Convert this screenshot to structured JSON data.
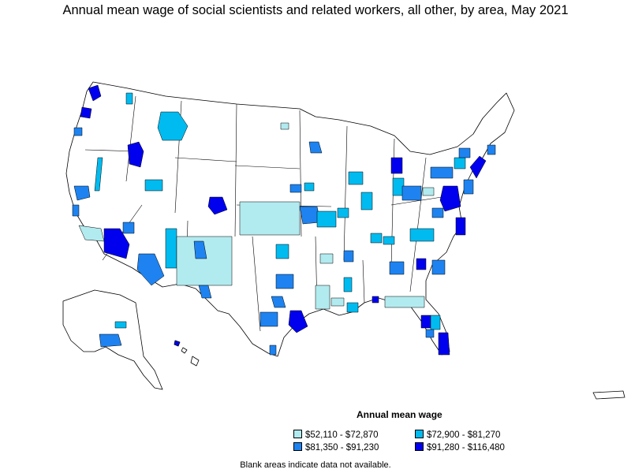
{
  "title": "Annual mean wage of social scientists and related workers, all other, by area, May 2021",
  "legend": {
    "title": "Annual mean wage",
    "items": [
      {
        "label": "$52,110 - $72,870",
        "color": "#b2ebef"
      },
      {
        "label": "$72,900 - $81,270",
        "color": "#00bbef"
      },
      {
        "label": "$81,350 - $91,230",
        "color": "#1e83f0"
      },
      {
        "label": "$91,280 - $116,480",
        "color": "#0000ee"
      }
    ]
  },
  "note": "Blank areas indicate data not available.",
  "colors": {
    "border": "#000000",
    "blank": "#ffffff"
  }
}
